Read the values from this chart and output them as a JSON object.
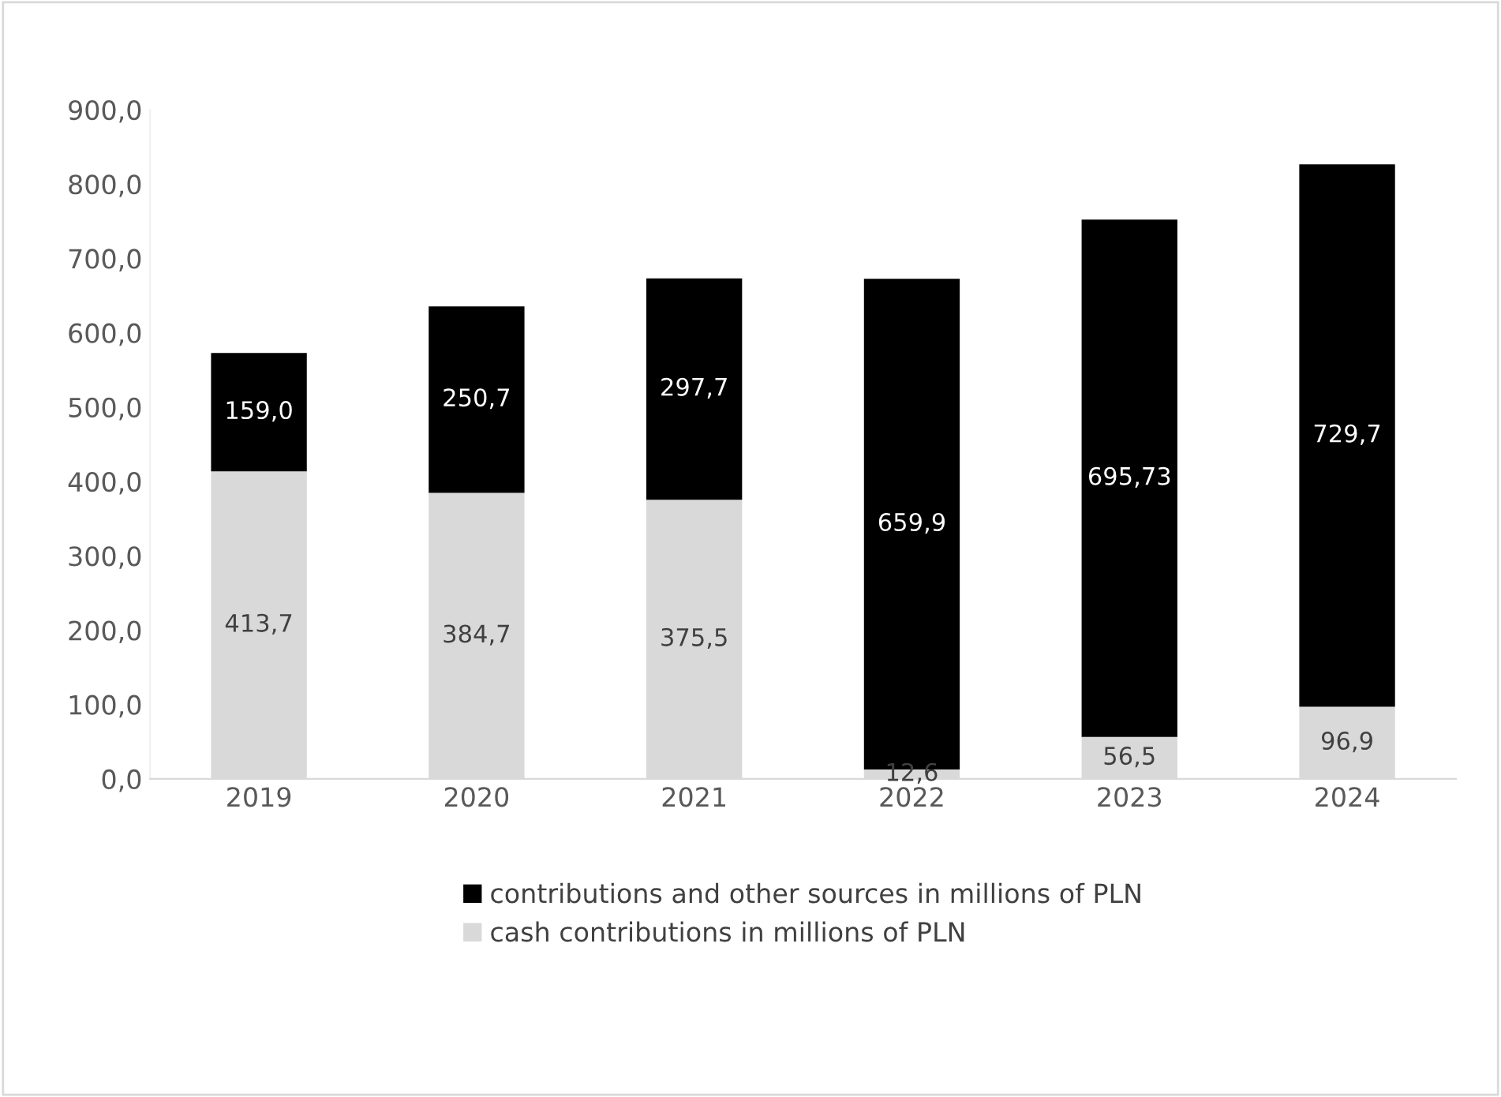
{
  "chart_data": {
    "type": "bar",
    "stacked": true,
    "categories": [
      "2019",
      "2020",
      "2021",
      "2022",
      "2023",
      "2024"
    ],
    "series": [
      {
        "name": "cash contributions in millions of PLN",
        "color": "#d9d9d9",
        "values": [
          413.7,
          384.7,
          375.5,
          12.6,
          56.5,
          96.9
        ],
        "value_labels": [
          "413,7",
          "384,7",
          "375,5",
          "12,6",
          "56,5",
          "96,9"
        ]
      },
      {
        "name": "contributions and other sources in millions of PLN",
        "color": "#000000",
        "values": [
          159.0,
          250.7,
          297.7,
          659.9,
          695.73,
          729.7
        ],
        "value_labels": [
          "159,0",
          "250,7",
          "297,7",
          "659,9",
          "695,73",
          "729,7"
        ]
      }
    ],
    "ylim": [
      0,
      900
    ],
    "yticks": [
      {
        "value": 0,
        "label": "0,0"
      },
      {
        "value": 100,
        "label": "100,0"
      },
      {
        "value": 200,
        "label": "200,0"
      },
      {
        "value": 300,
        "label": "300,0"
      },
      {
        "value": 400,
        "label": "400,0"
      },
      {
        "value": 500,
        "label": "500,0"
      },
      {
        "value": 600,
        "label": "600,0"
      },
      {
        "value": 700,
        "label": "700,0"
      },
      {
        "value": 800,
        "label": "800,0"
      },
      {
        "value": 900,
        "label": "900,0"
      }
    ],
    "grid": false,
    "legend": "bottom"
  }
}
